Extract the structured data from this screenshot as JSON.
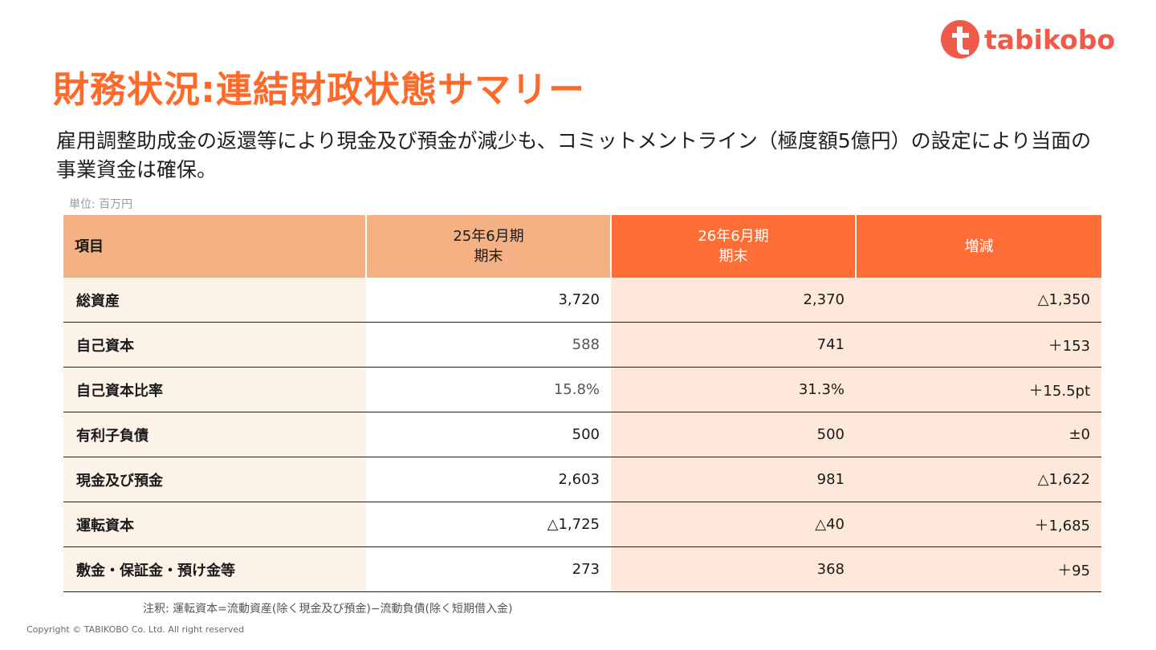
{
  "brand": {
    "name": "tabikobo",
    "color": "#f05a4a",
    "mark_icon": "tabikobo-t-logo-icon"
  },
  "slide": {
    "title": "財務状況:連結財政状態サマリー",
    "subtitle": "雇用調整助成金の返還等により現金及び預金が減少も、コミットメントライン（極度額5億円）の設定により当面の事業資金は確保。",
    "unit": "単位: 百万円",
    "note": "注釈: 運転資本=流動資産(除く現金及び預金)−流動負債(除く短期借入金)",
    "copyright": "Copyright © TABIKOBO Co. Ltd. All right reserved",
    "accent_color": "#ff6a2b"
  },
  "table": {
    "headers": {
      "item": "項目",
      "p25_line1": "25年6月期",
      "p25_line2": "期末",
      "p26_line1": "26年6月期",
      "p26_line2": "期末",
      "change": "増減"
    },
    "rows": [
      {
        "item": "総資産",
        "p25": "3,720",
        "p26": "2,370",
        "change": "△1,350"
      },
      {
        "item": "自己資本",
        "p25": "588",
        "p26": "741",
        "change": "＋153"
      },
      {
        "item": "自己資本比率",
        "p25": "15.8%",
        "p26": "31.3%",
        "change": "＋15.5pt"
      },
      {
        "item": "有利子負債",
        "p25": "500",
        "p26": "500",
        "change": "±0"
      },
      {
        "item": "現金及び預金",
        "p25": "2,603",
        "p26": "981",
        "change": "△1,622"
      },
      {
        "item": "運転資本",
        "p25": "△1,725",
        "p26": "△40",
        "change": "＋1,685"
      },
      {
        "item": "敷金・保証金・預け金等",
        "p25": "273",
        "p26": "368",
        "change": "＋95"
      }
    ]
  }
}
